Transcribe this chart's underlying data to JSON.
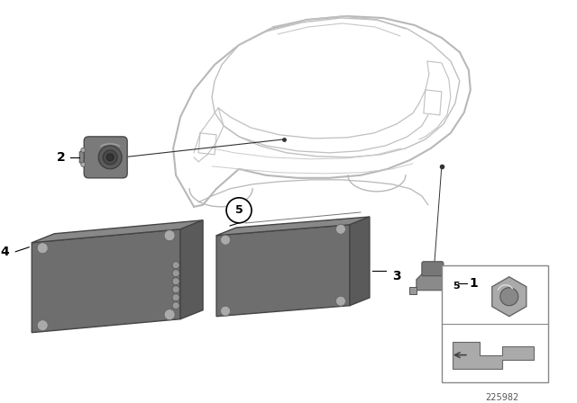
{
  "background_color": "#ffffff",
  "diagram_number": "225982",
  "line_color": "#aaaaaa",
  "dark_gray": "#555555",
  "med_gray": "#888888",
  "light_gray": "#bbbbbb",
  "part_dark": "#5a5a5a",
  "part_mid": "#777777",
  "part_light": "#999999",
  "label_fontsize": 9,
  "car_line_color": "#b0b0b0",
  "car_lw": 1.0
}
